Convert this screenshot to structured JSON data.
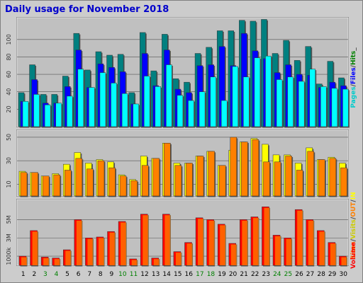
{
  "title": "Daily usage for November 2018",
  "colors": {
    "hits": "#008080",
    "files": "#0000ff",
    "pages": "#00ffff",
    "visits": "#ffff00",
    "sites": "#ff8000",
    "volume": "#ff0000",
    "kbin": "#ff8000",
    "kbout": "#ff8000",
    "panel": "#c0c0c0",
    "weekend_label": "#008000",
    "weekday_label": "#000000"
  },
  "chart_data": [
    {
      "type": "bar",
      "legend": [
        {
          "label": "Pages",
          "color": "#00cccc"
        },
        {
          "label": "/",
          "color": "#444444"
        },
        {
          "label": "Files",
          "color": "#0000ff"
        },
        {
          "label": "/",
          "color": "#444444"
        },
        {
          "label": "Hits",
          "color": "#008000"
        },
        {
          "label": "_",
          "color": "#444444"
        }
      ],
      "yticks": [
        20,
        40,
        60,
        80,
        100
      ],
      "ylim": [
        0,
        125
      ],
      "categories": [
        "1",
        "2",
        "3",
        "4",
        "5",
        "6",
        "7",
        "8",
        "9",
        "10",
        "11",
        "12",
        "13",
        "14",
        "15",
        "16",
        "17",
        "18",
        "19",
        "20",
        "21",
        "22",
        "23",
        "24",
        "25",
        "26",
        "27",
        "28",
        "29",
        "30"
      ],
      "series": [
        {
          "name": "Hits",
          "values": [
            39,
            71,
            37,
            37,
            58,
            107,
            65,
            86,
            82,
            83,
            39,
            108,
            64,
            106,
            55,
            51,
            84,
            91,
            110,
            110,
            122,
            121,
            123,
            84,
            99,
            76,
            92,
            49,
            75,
            56
          ]
        },
        {
          "name": "Files",
          "values": [
            29,
            54,
            27,
            27,
            46,
            88,
            45,
            72,
            68,
            63,
            26,
            84,
            47,
            88,
            43,
            39,
            70,
            71,
            92,
            70,
            107,
            87,
            78,
            62,
            71,
            60,
            59,
            45,
            51,
            47
          ]
        },
        {
          "name": "Pages",
          "values": [
            29,
            37,
            25,
            27,
            35,
            66,
            45,
            62,
            50,
            38,
            26,
            58,
            46,
            71,
            36,
            30,
            40,
            57,
            30,
            69,
            57,
            79,
            81,
            54,
            57,
            52,
            66,
            46,
            44,
            43
          ]
        }
      ]
    },
    {
      "type": "bar",
      "legend": [
        {
          "label": "Sites",
          "color": "#ff8000"
        },
        {
          "label": "/",
          "color": "#444444"
        },
        {
          "label": "Visits",
          "color": "#cccc00"
        },
        {
          "label": "/",
          "color": "#444444"
        },
        {
          "label": "OUT",
          "color": "#ff8000"
        },
        {
          "label": "/",
          "color": "#444444"
        },
        {
          "label": "IN",
          "color": "#ffff00"
        }
      ],
      "yticks": [
        10,
        30,
        50
      ],
      "ylim": [
        0,
        56
      ],
      "categories": [
        "1",
        "2",
        "3",
        "4",
        "5",
        "6",
        "7",
        "8",
        "9",
        "10",
        "11",
        "12",
        "13",
        "14",
        "15",
        "16",
        "17",
        "18",
        "19",
        "20",
        "21",
        "22",
        "23",
        "24",
        "25",
        "26",
        "27",
        "28",
        "29",
        "30"
      ],
      "series": [
        {
          "name": "Visits",
          "values": [
            21,
            20,
            17,
            19,
            27,
            37,
            28,
            31,
            29,
            18,
            14,
            34,
            32,
            45,
            28,
            28,
            34,
            38,
            26,
            39,
            46,
            49,
            44,
            35,
            35,
            28,
            41,
            31,
            33,
            28
          ]
        },
        {
          "name": "Sites",
          "values": [
            20,
            20,
            17,
            18,
            22,
            32,
            23,
            30,
            24,
            17,
            13,
            26,
            32,
            45,
            26,
            28,
            34,
            38,
            26,
            50,
            46,
            48,
            29,
            29,
            34,
            22,
            38,
            31,
            32,
            24
          ]
        }
      ]
    },
    {
      "type": "bar",
      "legend": [
        {
          "label": "Volume",
          "color": "#ff0000"
        }
      ],
      "yticks": [
        {
          "value": 1000,
          "label": "1000k"
        },
        {
          "value": 3000,
          "label": "3M"
        },
        {
          "value": 5000,
          "label": "5M"
        }
      ],
      "ylim": [
        0,
        7200
      ],
      "categories": [
        "1",
        "2",
        "3",
        "4",
        "5",
        "6",
        "7",
        "8",
        "9",
        "10",
        "11",
        "12",
        "13",
        "14",
        "15",
        "16",
        "17",
        "18",
        "19",
        "20",
        "21",
        "22",
        "23",
        "24",
        "25",
        "26",
        "27",
        "28",
        "29",
        "30"
      ],
      "series": [
        {
          "name": "Volume",
          "values": [
            1000,
            3800,
            900,
            800,
            1700,
            5000,
            3000,
            3100,
            3700,
            4800,
            700,
            5600,
            800,
            5600,
            1500,
            2500,
            5200,
            5000,
            4500,
            2400,
            5000,
            5300,
            6400,
            3300,
            3000,
            6100,
            5000,
            3800,
            2500,
            1000
          ]
        }
      ]
    }
  ],
  "x_labels": [
    {
      "label": "1",
      "weekend": false
    },
    {
      "label": "2",
      "weekend": false
    },
    {
      "label": "3",
      "weekend": true
    },
    {
      "label": "4",
      "weekend": true
    },
    {
      "label": "5",
      "weekend": false
    },
    {
      "label": "6",
      "weekend": false
    },
    {
      "label": "7",
      "weekend": false
    },
    {
      "label": "8",
      "weekend": false
    },
    {
      "label": "9",
      "weekend": false
    },
    {
      "label": "10",
      "weekend": true
    },
    {
      "label": "11",
      "weekend": true
    },
    {
      "label": "12",
      "weekend": false
    },
    {
      "label": "13",
      "weekend": false
    },
    {
      "label": "14",
      "weekend": false
    },
    {
      "label": "15",
      "weekend": false
    },
    {
      "label": "16",
      "weekend": false
    },
    {
      "label": "17",
      "weekend": true
    },
    {
      "label": "18",
      "weekend": true
    },
    {
      "label": "19",
      "weekend": false
    },
    {
      "label": "20",
      "weekend": false
    },
    {
      "label": "21",
      "weekend": false
    },
    {
      "label": "22",
      "weekend": false
    },
    {
      "label": "23",
      "weekend": false
    },
    {
      "label": "24",
      "weekend": true
    },
    {
      "label": "25",
      "weekend": true
    },
    {
      "label": "26",
      "weekend": false
    },
    {
      "label": "27",
      "weekend": false
    },
    {
      "label": "28",
      "weekend": false
    },
    {
      "label": "29",
      "weekend": false
    },
    {
      "label": "30",
      "weekend": false
    }
  ]
}
